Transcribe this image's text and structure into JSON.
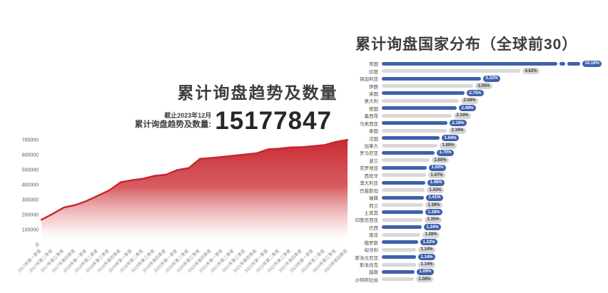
{
  "chart_data": [
    {
      "type": "area",
      "title": "累计询盘趋势及数量",
      "annotation_asof": "截止2023年12月",
      "annotation_label": "累计询盘趋势及数量:",
      "annotation_value": "15177847",
      "xlabel": "",
      "ylabel": "",
      "ylim": [
        0,
        700000
      ],
      "yticks": [
        0,
        100000,
        200000,
        300000,
        400000,
        500000,
        600000,
        700000
      ],
      "grid": false,
      "line_color": "#c7242b",
      "fill_style": "red-to-white vertical gradient",
      "categories": [
        "2017年第一季度",
        "2017年第二季度",
        "2017年第三季度",
        "2017年第四季度",
        "2018年第一季度",
        "2018年第二季度",
        "2018年第三季度",
        "2018年第四季度",
        "2019年第一季度",
        "2019年第二季度",
        "2019年第三季度",
        "2019年第四季度",
        "2020年第一季度",
        "2020年第二季度",
        "2020年第三季度",
        "2020年第四季度",
        "2021年第一季度",
        "2021年第二季度",
        "2021年第三季度",
        "2021年第四季度",
        "2022年第一季度",
        "2022年第二季度",
        "2022年第三季度",
        "2022年第四季度",
        "2023年第一季度",
        "2023年第二季度",
        "2023年第三季度",
        "2023年第四季度"
      ],
      "values": [
        165000,
        205000,
        248000,
        264000,
        292000,
        327000,
        363000,
        416000,
        430000,
        440000,
        459000,
        467000,
        498000,
        511000,
        573000,
        578000,
        586000,
        594000,
        602000,
        610000,
        636000,
        641000,
        649000,
        651000,
        657000,
        665000,
        686000,
        700000
      ]
    },
    {
      "type": "bar",
      "orientation": "horizontal",
      "title": "累计询盘国家分布（全球前30）",
      "legend": null,
      "grid": false,
      "unit": "%",
      "bar_color_odd_rows": "#3e61ac",
      "bar_color_even_rows": "#d8d8d8",
      "badge_gray_bg": "#d6d6d6",
      "axis_break_first_bar": true,
      "categories": [
        "美国",
        "印度",
        "保加利亚",
        "伊朗",
        "英国",
        "意大利",
        "德国",
        "墨西哥",
        "马来西亚",
        "泰国",
        "法国",
        "加拿大",
        "罗马尼亚",
        "波兰",
        "克罗地亚",
        "西班牙",
        "澳大利亚",
        "巴基斯坦",
        "瑞典",
        "荷兰",
        "土耳其",
        "印度尼西亚",
        "巴西",
        "南非",
        "俄罗斯",
        "匈牙利",
        "斯洛文尼亚",
        "斯洛伐克",
        "越南",
        "沙特阿拉伯"
      ],
      "values": [
        10.19,
        4.62,
        3.32,
        3.05,
        2.75,
        2.58,
        2.49,
        2.34,
        2.18,
        2.16,
        1.94,
        1.85,
        1.75,
        1.6,
        1.5,
        1.47,
        1.46,
        1.43,
        1.41,
        1.38,
        1.38,
        1.35,
        1.34,
        1.28,
        1.22,
        1.14,
        1.14,
        1.14,
        1.09,
        1.08
      ],
      "value_labels": [
        "10.19%",
        "4.62%",
        "3.32%",
        "3.05%",
        "2.75%",
        "2.58%",
        "2.49%",
        "2.34%",
        "2.18%",
        "2.16%",
        "1.94%",
        "1.85%",
        "1.75%",
        "1.60%",
        "1.50%",
        "1.47%",
        "1.46%",
        "1.43%",
        "1.41%",
        "1.38%",
        "1.38%",
        "1.35%",
        "1.34%",
        "1.28%",
        "1.22%",
        "1.14%",
        "1.14%",
        "1.14%",
        "1.09%",
        "1.08%"
      ]
    }
  ]
}
